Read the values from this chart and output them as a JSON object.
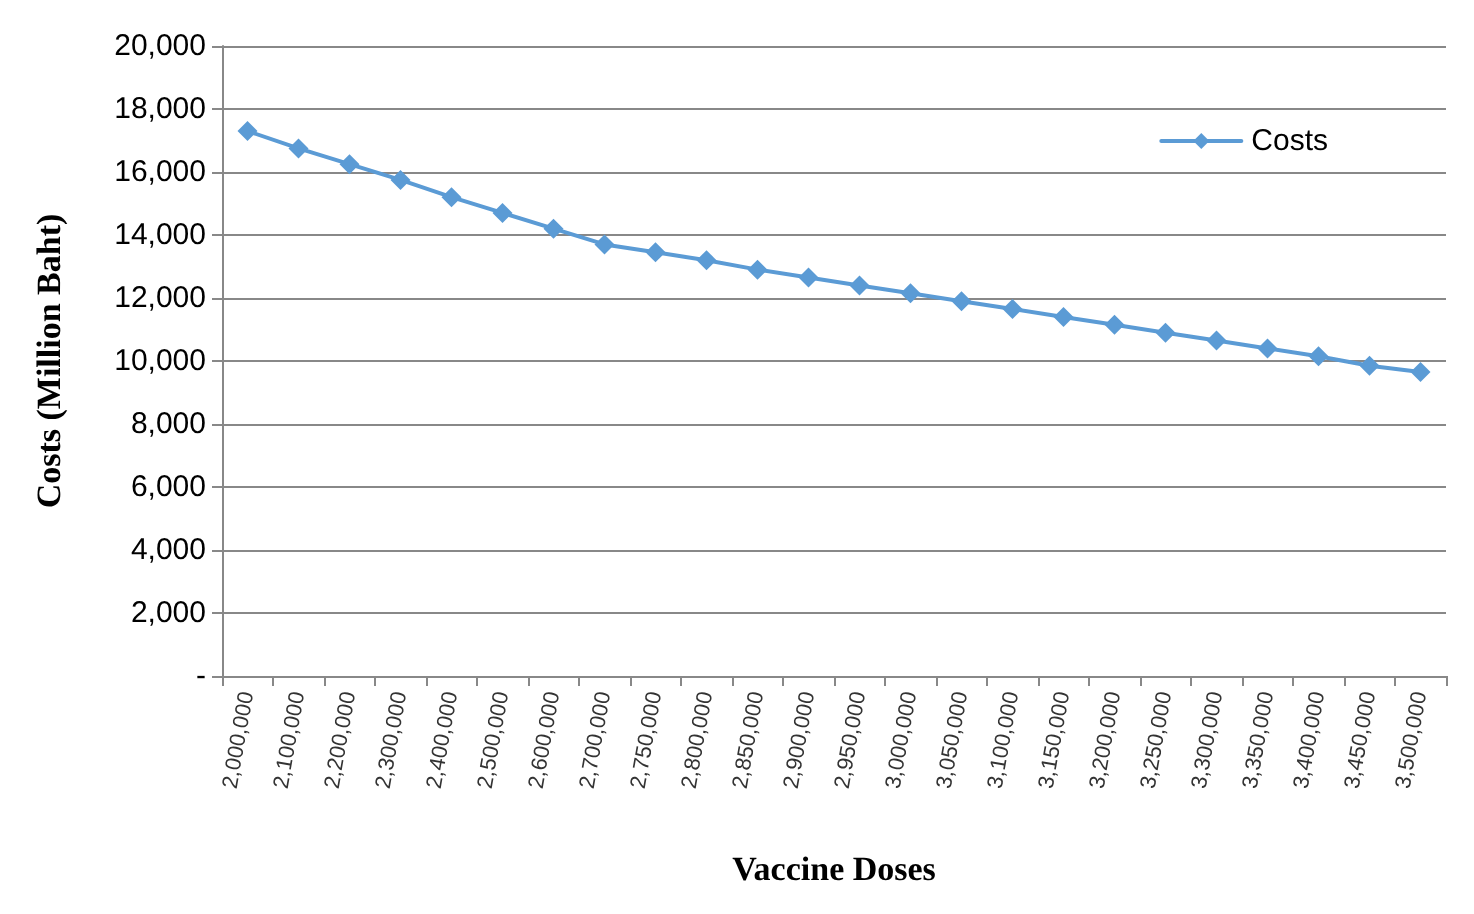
{
  "chart_data": {
    "type": "line",
    "xlabel": "Vaccine Doses",
    "ylabel": "Costs (Million Baht)",
    "categories": [
      "2,000,000",
      "2,100,000",
      "2,200,000",
      "2,300,000",
      "2,400,000",
      "2,500,000",
      "2,600,000",
      "2,700,000",
      "2,750,000",
      "2,800,000",
      "2,850,000",
      "2,900,000",
      "2,950,000",
      "3,000,000",
      "3,050,000",
      "3,100,000",
      "3,150,000",
      "3,200,000",
      "3,250,000",
      "3,300,000",
      "3,350,000",
      "3,400,000",
      "3,450,000",
      "3,500,000"
    ],
    "series": [
      {
        "name": "Costs",
        "color": "#5b9bd5",
        "values": [
          17300,
          16750,
          16250,
          15750,
          15200,
          14700,
          14200,
          13700,
          13450,
          13200,
          12900,
          12650,
          12400,
          12150,
          11900,
          11650,
          11400,
          11150,
          10900,
          10650,
          10400,
          10150,
          9850,
          9650
        ]
      }
    ],
    "ylim": [
      0,
      20000
    ],
    "yticks": [
      {
        "value": 0,
        "label": "-"
      },
      {
        "value": 2000,
        "label": "2,000"
      },
      {
        "value": 4000,
        "label": "4,000"
      },
      {
        "value": 6000,
        "label": "6,000"
      },
      {
        "value": 8000,
        "label": "8,000"
      },
      {
        "value": 10000,
        "label": "10,000"
      },
      {
        "value": 12000,
        "label": "12,000"
      },
      {
        "value": 14000,
        "label": "14,000"
      },
      {
        "value": 16000,
        "label": "16,000"
      },
      {
        "value": 18000,
        "label": "18,000"
      },
      {
        "value": 20000,
        "label": "20,000"
      }
    ],
    "grid": "y",
    "legend": "top right",
    "marker": "diamond",
    "line_style": "solid"
  }
}
